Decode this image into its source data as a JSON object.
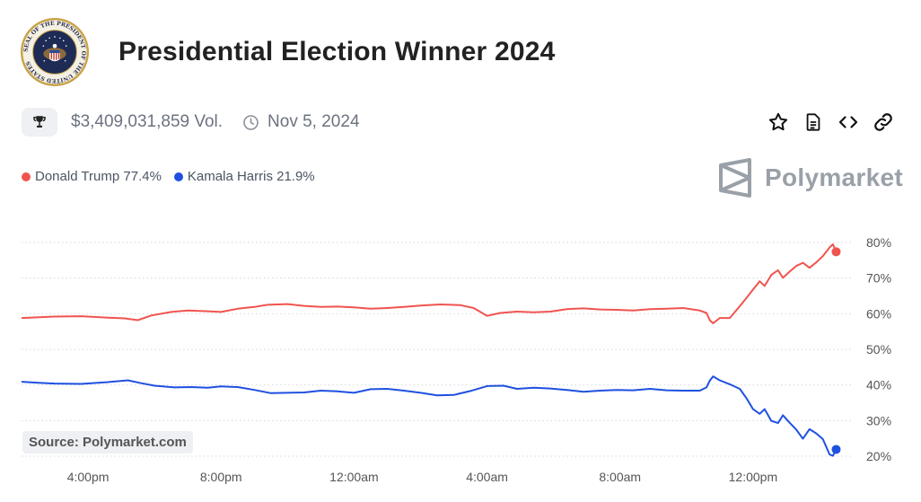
{
  "header": {
    "title": "Presidential Election Winner 2024",
    "seal_text": "SEAL OF THE PRESIDENT OF THE UNITED STATES"
  },
  "meta": {
    "volume": "$3,409,031,859 Vol.",
    "date": "Nov 5, 2024",
    "icons": [
      "trophy-icon",
      "clock-icon",
      "star-icon",
      "document-icon",
      "code-icon",
      "link-icon"
    ]
  },
  "brand": {
    "name": "Polymarket"
  },
  "source": "Source: Polymarket.com",
  "colors": {
    "trump": "#f0544f",
    "harris": "#1f50e0"
  },
  "chart_data": {
    "type": "line",
    "title": "",
    "xlabel": "",
    "ylabel": "",
    "x_unit": "hours since 2:00pm",
    "x_range": [
      0,
      25
    ],
    "ylim": [
      20,
      80
    ],
    "grid": "dotted horizontal",
    "x_ticks": [
      {
        "x": 2,
        "label": "4:00pm"
      },
      {
        "x": 6,
        "label": "8:00pm"
      },
      {
        "x": 10,
        "label": "12:00am"
      },
      {
        "x": 14,
        "label": "4:00am"
      },
      {
        "x": 18,
        "label": "8:00am"
      },
      {
        "x": 22,
        "label": "12:00pm"
      }
    ],
    "y_ticks": [
      {
        "y": 80,
        "label": "80%"
      },
      {
        "y": 70,
        "label": "70%"
      },
      {
        "y": 60,
        "label": "60%"
      },
      {
        "y": 50,
        "label": "50%"
      },
      {
        "y": 40,
        "label": "40%"
      },
      {
        "y": 30,
        "label": "30%"
      },
      {
        "y": 20,
        "label": "20%"
      }
    ],
    "legend": [
      {
        "label": "Donald Trump 77.4%"
      },
      {
        "label": "Kamala Harris 21.9%"
      }
    ],
    "series": [
      {
        "name": "Donald Trump",
        "final": 77.4,
        "points": [
          [
            0,
            58.8
          ],
          [
            1,
            59.2
          ],
          [
            1.8,
            59.3
          ],
          [
            2.6,
            58.9
          ],
          [
            3.1,
            58.7
          ],
          [
            3.5,
            58.2
          ],
          [
            3.9,
            59.5
          ],
          [
            4.5,
            60.5
          ],
          [
            5,
            60.9
          ],
          [
            5.6,
            60.7
          ],
          [
            6,
            60.5
          ],
          [
            6.5,
            61.4
          ],
          [
            7,
            61.9
          ],
          [
            7.4,
            62.5
          ],
          [
            8,
            62.7
          ],
          [
            8.5,
            62.2
          ],
          [
            9,
            61.9
          ],
          [
            9.5,
            62
          ],
          [
            10,
            61.8
          ],
          [
            10.5,
            61.4
          ],
          [
            11,
            61.6
          ],
          [
            11.5,
            61.9
          ],
          [
            12,
            62.3
          ],
          [
            12.6,
            62.6
          ],
          [
            13.2,
            62.4
          ],
          [
            13.6,
            61.6
          ],
          [
            14,
            59.4
          ],
          [
            14.4,
            60.2
          ],
          [
            14.9,
            60.6
          ],
          [
            15.4,
            60.4
          ],
          [
            15.9,
            60.6
          ],
          [
            16.4,
            61.3
          ],
          [
            16.9,
            61.5
          ],
          [
            17.4,
            61.2
          ],
          [
            17.9,
            61.1
          ],
          [
            18.4,
            60.9
          ],
          [
            18.9,
            61.3
          ],
          [
            19.4,
            61.4
          ],
          [
            19.9,
            61.6
          ],
          [
            20.4,
            60.9
          ],
          [
            20.6,
            60.2
          ],
          [
            20.7,
            58.2
          ],
          [
            20.8,
            57.3
          ],
          [
            21,
            58.8
          ],
          [
            21.3,
            58.8
          ],
          [
            21.6,
            62.1
          ],
          [
            21.8,
            64.4
          ],
          [
            22,
            66.8
          ],
          [
            22.2,
            69.1
          ],
          [
            22.35,
            67.8
          ],
          [
            22.55,
            70.9
          ],
          [
            22.75,
            72.2
          ],
          [
            22.9,
            70.1
          ],
          [
            23.1,
            71.8
          ],
          [
            23.3,
            73.4
          ],
          [
            23.5,
            74.3
          ],
          [
            23.7,
            72.9
          ],
          [
            23.9,
            74.4
          ],
          [
            24.1,
            76.2
          ],
          [
            24.3,
            78.6
          ],
          [
            24.4,
            79.5
          ],
          [
            24.5,
            77.4
          ]
        ]
      },
      {
        "name": "Kamala Harris",
        "final": 21.9,
        "points": [
          [
            0,
            40.9
          ],
          [
            0.5,
            40.6
          ],
          [
            1,
            40.4
          ],
          [
            1.8,
            40.3
          ],
          [
            2.6,
            40.8
          ],
          [
            3.2,
            41.3
          ],
          [
            3.6,
            40.5
          ],
          [
            4,
            39.8
          ],
          [
            4.6,
            39.3
          ],
          [
            5.1,
            39.4
          ],
          [
            5.6,
            39.2
          ],
          [
            6,
            39.6
          ],
          [
            6.5,
            39.4
          ],
          [
            7,
            38.6
          ],
          [
            7.5,
            37.7
          ],
          [
            8,
            37.8
          ],
          [
            8.5,
            37.9
          ],
          [
            9,
            38.4
          ],
          [
            9.5,
            38.2
          ],
          [
            10,
            37.8
          ],
          [
            10.5,
            38.8
          ],
          [
            11,
            38.9
          ],
          [
            11.5,
            38.4
          ],
          [
            12,
            37.8
          ],
          [
            12.5,
            37.1
          ],
          [
            13,
            37.2
          ],
          [
            13.5,
            38.3
          ],
          [
            14,
            39.7
          ],
          [
            14.5,
            39.8
          ],
          [
            14.9,
            38.9
          ],
          [
            15.4,
            39.2
          ],
          [
            15.9,
            39.0
          ],
          [
            16.4,
            38.6
          ],
          [
            16.9,
            38.1
          ],
          [
            17.4,
            38.4
          ],
          [
            17.9,
            38.6
          ],
          [
            18.4,
            38.5
          ],
          [
            18.9,
            38.9
          ],
          [
            19.4,
            38.5
          ],
          [
            19.9,
            38.4
          ],
          [
            20.4,
            38.4
          ],
          [
            20.6,
            39.3
          ],
          [
            20.7,
            41.2
          ],
          [
            20.8,
            42.4
          ],
          [
            21,
            41.3
          ],
          [
            21.3,
            40.2
          ],
          [
            21.6,
            38.9
          ],
          [
            21.8,
            36.3
          ],
          [
            22,
            33.2
          ],
          [
            22.2,
            31.9
          ],
          [
            22.35,
            33.2
          ],
          [
            22.55,
            29.9
          ],
          [
            22.75,
            29.3
          ],
          [
            22.9,
            31.5
          ],
          [
            23.1,
            29.4
          ],
          [
            23.3,
            27.5
          ],
          [
            23.5,
            24.9
          ],
          [
            23.7,
            27.6
          ],
          [
            23.9,
            26.4
          ],
          [
            24.1,
            24.8
          ],
          [
            24.3,
            20.5
          ],
          [
            24.4,
            20.1
          ],
          [
            24.5,
            21.9
          ]
        ]
      }
    ]
  }
}
